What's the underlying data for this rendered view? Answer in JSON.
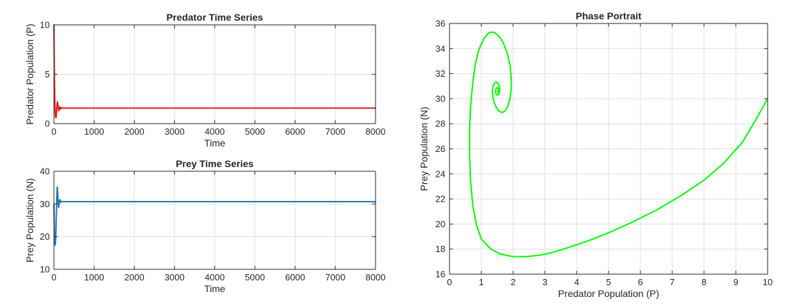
{
  "chart_data": [
    {
      "type": "line",
      "title": "Predator Time Series",
      "xlabel": "Time",
      "ylabel": "Predator Population (P)",
      "xlim": [
        0,
        8000
      ],
      "ylim": [
        0,
        10
      ],
      "xticks": [
        0,
        1000,
        2000,
        3000,
        4000,
        5000,
        6000,
        7000,
        8000
      ],
      "yticks": [
        0,
        5,
        10
      ],
      "grid": true,
      "color": "#e31a1c",
      "series": [
        {
          "x": [
            0,
            5,
            10,
            20,
            30,
            40,
            50,
            60,
            70,
            80,
            90,
            100,
            110,
            120,
            130,
            140,
            150,
            160,
            170,
            180,
            200,
            220,
            240,
            260,
            300,
            400,
            600,
            1000,
            2000,
            3000,
            4000,
            5000,
            6000,
            7000,
            8000
          ],
          "values": [
            10,
            7.5,
            5.2,
            2.6,
            1.2,
            0.7,
            0.6,
            0.9,
            1.6,
            2.1,
            2.2,
            1.9,
            1.5,
            1.3,
            1.4,
            1.6,
            1.7,
            1.6,
            1.5,
            1.5,
            1.6,
            1.6,
            1.55,
            1.55,
            1.57,
            1.57,
            1.57,
            1.57,
            1.57,
            1.57,
            1.57,
            1.57,
            1.57,
            1.57,
            1.57
          ]
        }
      ]
    },
    {
      "type": "line",
      "title": "Prey Time Series",
      "xlabel": "Time",
      "ylabel": "Prey Population (N)",
      "xlim": [
        0,
        8000
      ],
      "ylim": [
        10,
        40
      ],
      "xticks": [
        0,
        1000,
        2000,
        3000,
        4000,
        5000,
        6000,
        7000,
        8000
      ],
      "yticks": [
        10,
        20,
        30,
        40
      ],
      "grid": true,
      "color": "#1f77b4",
      "series": [
        {
          "x": [
            0,
            10,
            20,
            30,
            40,
            50,
            60,
            70,
            80,
            90,
            100,
            110,
            120,
            130,
            140,
            150,
            160,
            170,
            180,
            200,
            220,
            250,
            300,
            400,
            600,
            1000,
            2000,
            3000,
            4000,
            5000,
            6000,
            7000,
            8000
          ],
          "values": [
            30,
            22,
            18,
            17.4,
            18.5,
            22,
            27,
            32,
            35.2,
            34.5,
            31.5,
            29.2,
            28.9,
            30.2,
            31.2,
            31.3,
            30.8,
            30.5,
            30.6,
            30.8,
            30.7,
            30.7,
            30.7,
            30.7,
            30.7,
            30.7,
            30.7,
            30.7,
            30.7,
            30.7,
            30.7,
            30.7,
            30.7
          ]
        }
      ]
    },
    {
      "type": "line",
      "title": "Phase Portrait",
      "xlabel": "Predator Population (P)",
      "ylabel": "Prey Population (N)",
      "xlim": [
        0,
        10
      ],
      "ylim": [
        16,
        36
      ],
      "xticks": [
        0,
        1,
        2,
        3,
        4,
        5,
        6,
        7,
        8,
        9,
        10
      ],
      "yticks": [
        16,
        18,
        20,
        22,
        24,
        26,
        28,
        30,
        32,
        34,
        36
      ],
      "grid": true,
      "color": "#00ff00",
      "series": [
        {
          "x": [
            10,
            9.6,
            9.2,
            8.6,
            8.0,
            7.3,
            6.5,
            5.7,
            5.0,
            4.3,
            3.7,
            3.2,
            2.8,
            2.4,
            2.0,
            1.6,
            1.3,
            1.0,
            0.85,
            0.73,
            0.66,
            0.63,
            0.63,
            0.66,
            0.72,
            0.8,
            0.92,
            1.08,
            1.25,
            1.4,
            1.55,
            1.7,
            1.82,
            1.9,
            1.94,
            1.94,
            1.9,
            1.83,
            1.74,
            1.65,
            1.56,
            1.47,
            1.4,
            1.36,
            1.35,
            1.38,
            1.44,
            1.5,
            1.55,
            1.58,
            1.57,
            1.53,
            1.48,
            1.45,
            1.46,
            1.5,
            1.54,
            1.55,
            1.53,
            1.51
          ],
          "y": [
            30.0,
            28.2,
            26.5,
            24.8,
            23.5,
            22.3,
            21.1,
            20.1,
            19.3,
            18.6,
            18.1,
            17.7,
            17.5,
            17.4,
            17.4,
            17.6,
            18.0,
            18.8,
            19.9,
            21.5,
            23.5,
            25.5,
            27.5,
            29.3,
            31.0,
            32.6,
            33.9,
            34.8,
            35.3,
            35.3,
            35.0,
            34.4,
            33.6,
            32.7,
            31.7,
            30.8,
            30.0,
            29.4,
            29.0,
            28.9,
            29.0,
            29.3,
            29.7,
            30.2,
            30.7,
            31.1,
            31.3,
            31.3,
            31.1,
            30.8,
            30.5,
            30.3,
            30.3,
            30.5,
            30.8,
            30.9,
            30.8,
            30.6,
            30.5,
            30.6
          ]
        }
      ]
    }
  ]
}
